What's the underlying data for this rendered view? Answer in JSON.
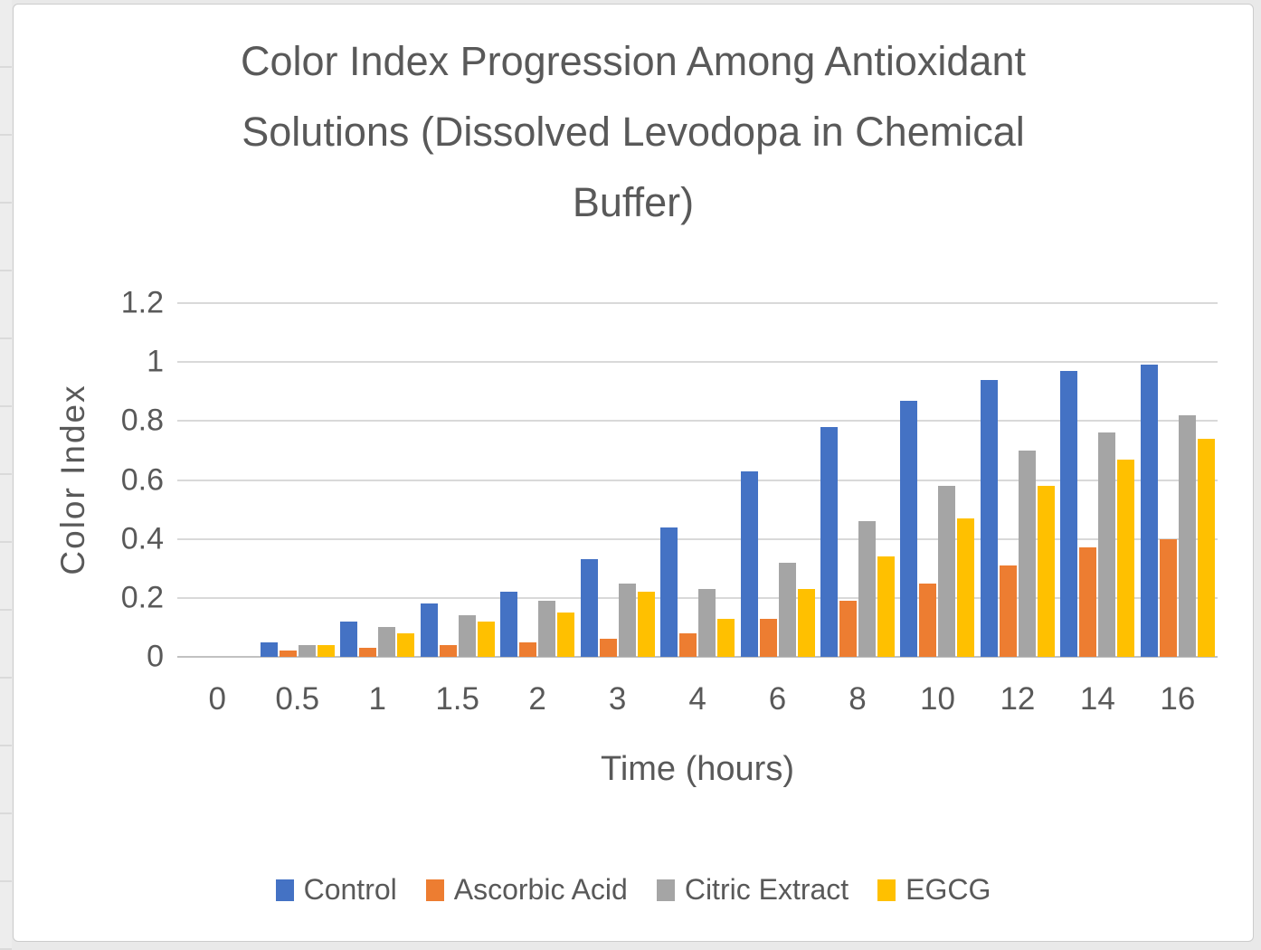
{
  "window": {
    "page_background": "#e9e9e9",
    "card_background": "#ffffff",
    "text_color": "#595959",
    "gridline_color": "#d9d9d9",
    "axis_line_color": "#c1c1c1"
  },
  "chart_data": {
    "type": "bar",
    "title": "Color Index Progression Among Antioxidant Solutions (Dissolved Levodopa in Chemical Buffer)",
    "title_lines": [
      "Color Index Progression Among Antioxidant",
      "Solutions (Dissolved Levodopa in Chemical",
      "Buffer)"
    ],
    "xlabel": "Time (hours)",
    "ylabel": "Color Index",
    "ylim": [
      0,
      1.2
    ],
    "y_ticks": [
      "1.2",
      "1",
      "0.8",
      "0.6",
      "0.4",
      "0.2",
      "0"
    ],
    "grid": true,
    "legend_position": "bottom",
    "categories": [
      "0",
      "0.5",
      "1",
      "1.5",
      "2",
      "3",
      "4",
      "6",
      "8",
      "10",
      "12",
      "14",
      "16"
    ],
    "series": [
      {
        "name": "Control",
        "color": "#4472C4",
        "values": [
          0,
          0.05,
          0.12,
          0.18,
          0.22,
          0.33,
          0.44,
          0.63,
          0.78,
          0.87,
          0.94,
          0.97,
          0.99
        ]
      },
      {
        "name": "Ascorbic Acid",
        "color": "#ED7D31",
        "values": [
          0,
          0.02,
          0.03,
          0.04,
          0.05,
          0.06,
          0.08,
          0.13,
          0.19,
          0.25,
          0.31,
          0.37,
          0.4
        ]
      },
      {
        "name": "Citric Extract",
        "color": "#A5A5A5",
        "values": [
          0,
          0.04,
          0.1,
          0.14,
          0.19,
          0.25,
          0.23,
          0.32,
          0.46,
          0.58,
          0.7,
          0.76,
          0.82
        ]
      },
      {
        "name": "EGCG",
        "color": "#FFC000",
        "values": [
          0,
          0.04,
          0.08,
          0.12,
          0.15,
          0.22,
          0.13,
          0.23,
          0.34,
          0.47,
          0.58,
          0.67,
          0.74
        ]
      }
    ]
  }
}
